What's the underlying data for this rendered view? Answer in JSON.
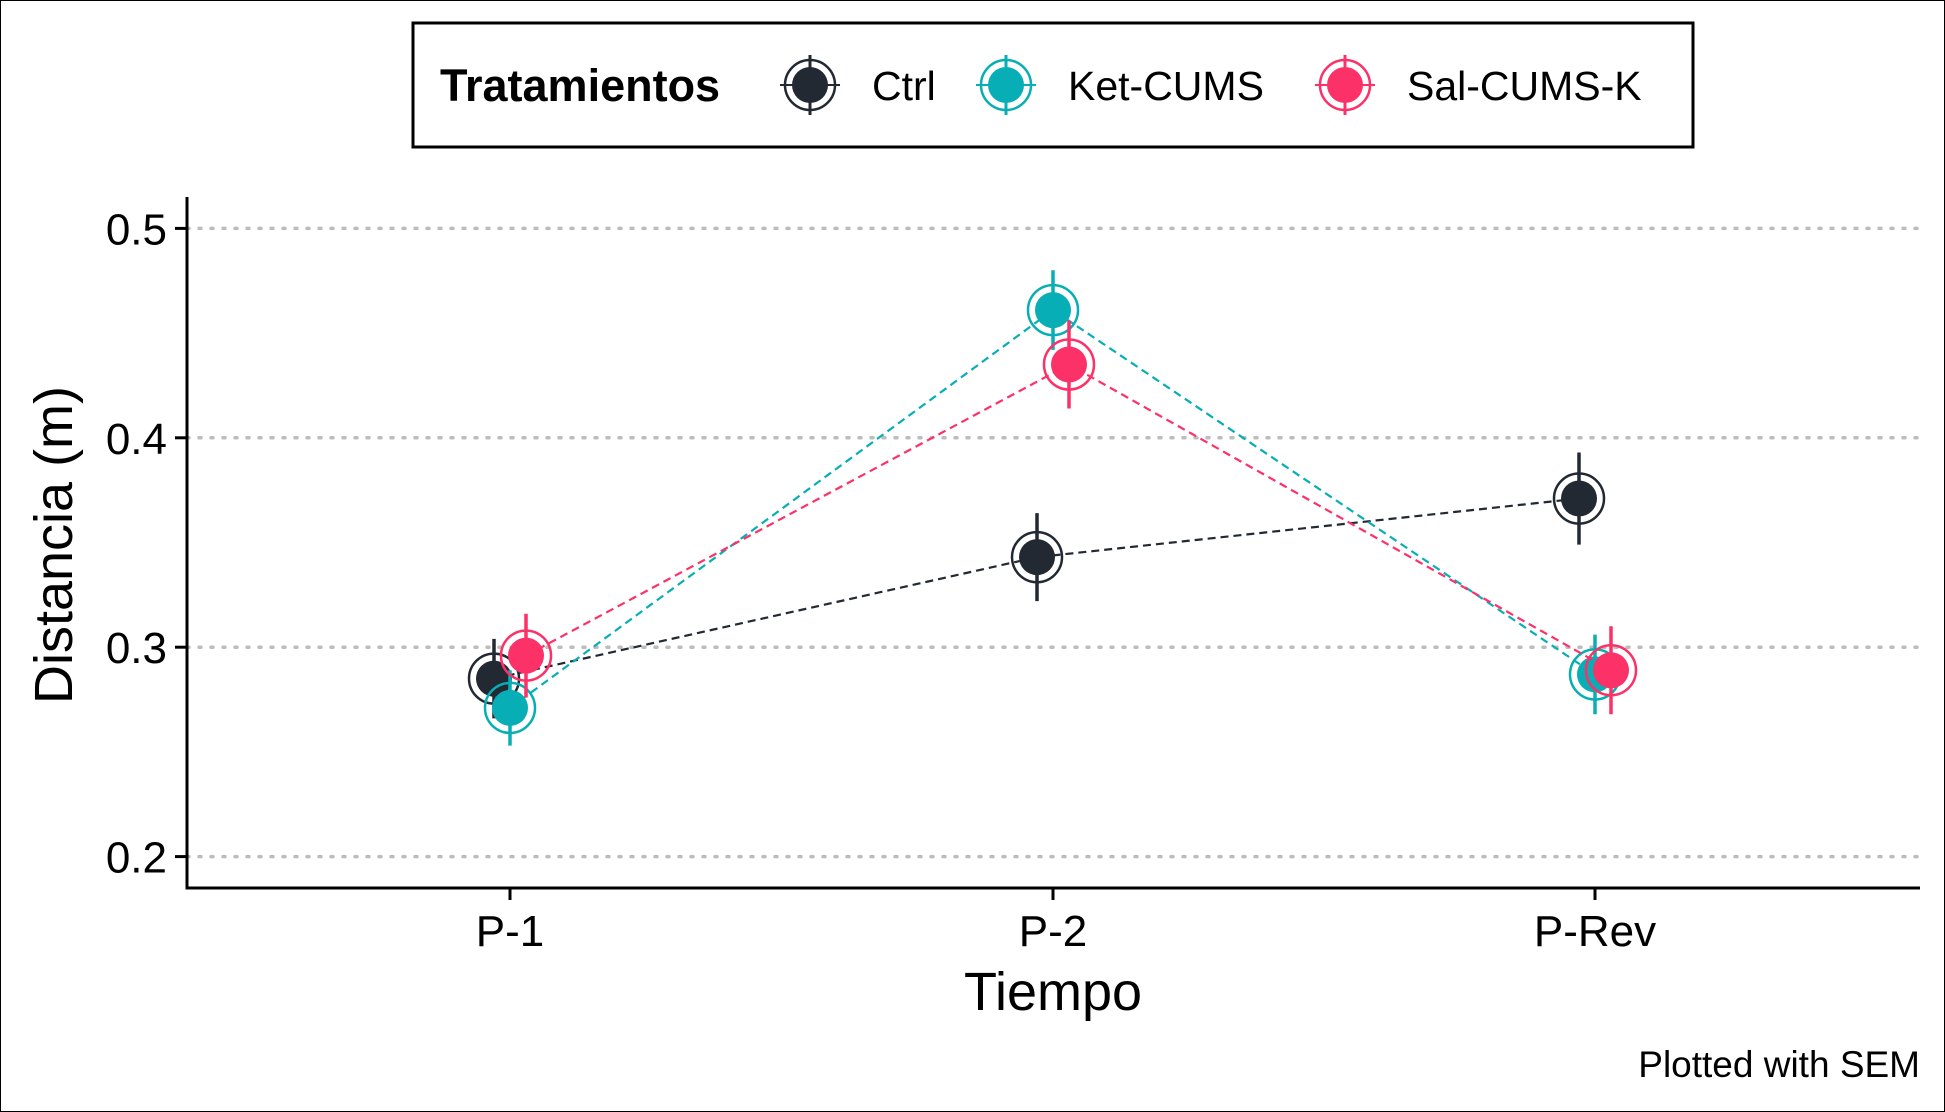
{
  "chart_data": {
    "type": "line",
    "xlabel": "Tiempo",
    "ylabel": "Distancia (m)",
    "categories": [
      "P-1",
      "P-2",
      "P-Rev"
    ],
    "yticks": [
      0.2,
      0.3,
      0.4,
      0.5
    ],
    "ytick_labels": [
      "0.2",
      "0.3",
      "0.4",
      "0.5"
    ],
    "ylim": [
      0.185,
      0.515
    ],
    "grid": "horizontal dotted",
    "legend": {
      "title": "Tratamientos",
      "position": "top"
    },
    "caption": "Plotted with SEM",
    "series": [
      {
        "name": "Ctrl",
        "color": "#222933",
        "values": [
          0.285,
          0.343,
          0.371
        ],
        "sem": [
          0.019,
          0.021,
          0.022
        ]
      },
      {
        "name": "Ket-CUMS",
        "color": "#08aeb6",
        "values": [
          0.271,
          0.461,
          0.287
        ],
        "sem": [
          0.018,
          0.019,
          0.019
        ]
      },
      {
        "name": "Sal-CUMS-K",
        "color": "#fc3168",
        "values": [
          0.296,
          0.435,
          0.289
        ],
        "sem": [
          0.02,
          0.021,
          0.021
        ]
      }
    ]
  }
}
